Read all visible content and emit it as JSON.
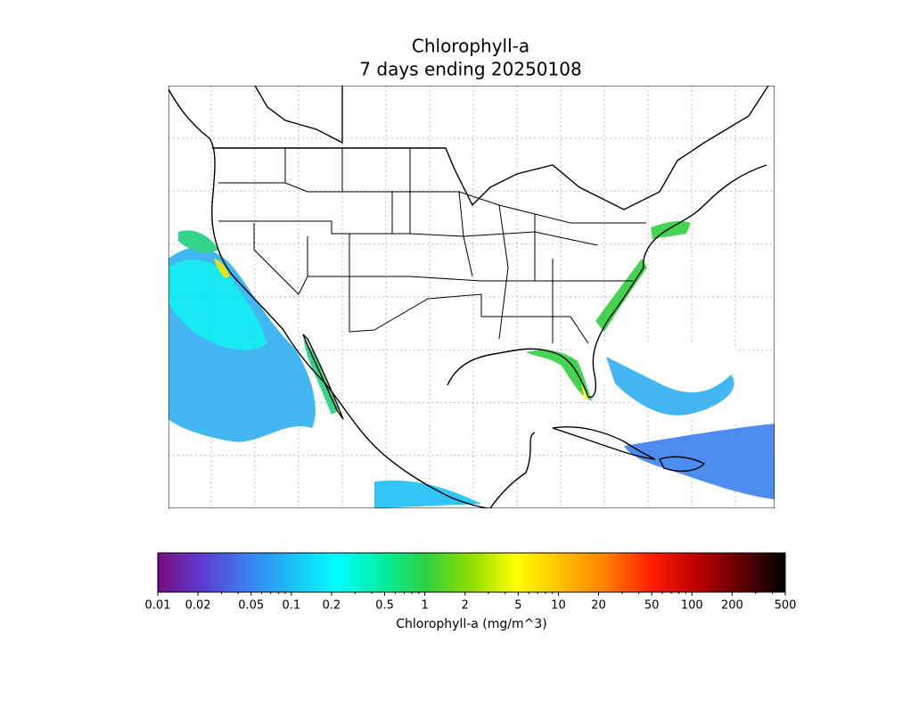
{
  "chart_data": {
    "type": "map",
    "title": "Chlorophyll-a",
    "subtitle": "7 days ending 20250108",
    "colorbar": {
      "label": "Chlorophyll-a (mg/m^3)",
      "scale": "log",
      "xlim": [
        0.01,
        500
      ],
      "xticks": [
        0.01,
        0.02,
        0.05,
        0.1,
        0.2,
        0.5,
        1,
        2,
        5,
        10,
        20,
        50,
        100,
        200,
        500
      ],
      "minor_ticks": [
        0.03,
        0.04,
        0.06,
        0.07,
        0.08,
        0.09,
        0.3,
        0.4,
        0.6,
        0.7,
        0.8,
        0.9,
        3,
        4,
        6,
        7,
        8,
        9,
        30,
        40,
        60,
        70,
        80,
        90,
        300,
        400
      ],
      "colormap": [
        "#7a0a86",
        "#5b3dcc",
        "#3a7fef",
        "#1bc0f5",
        "#00ffff",
        "#00f0a0",
        "#30d040",
        "#90e000",
        "#ffff00",
        "#ffc000",
        "#ff8000",
        "#ff2000",
        "#c00000",
        "#600000",
        "#000000"
      ]
    }
  }
}
